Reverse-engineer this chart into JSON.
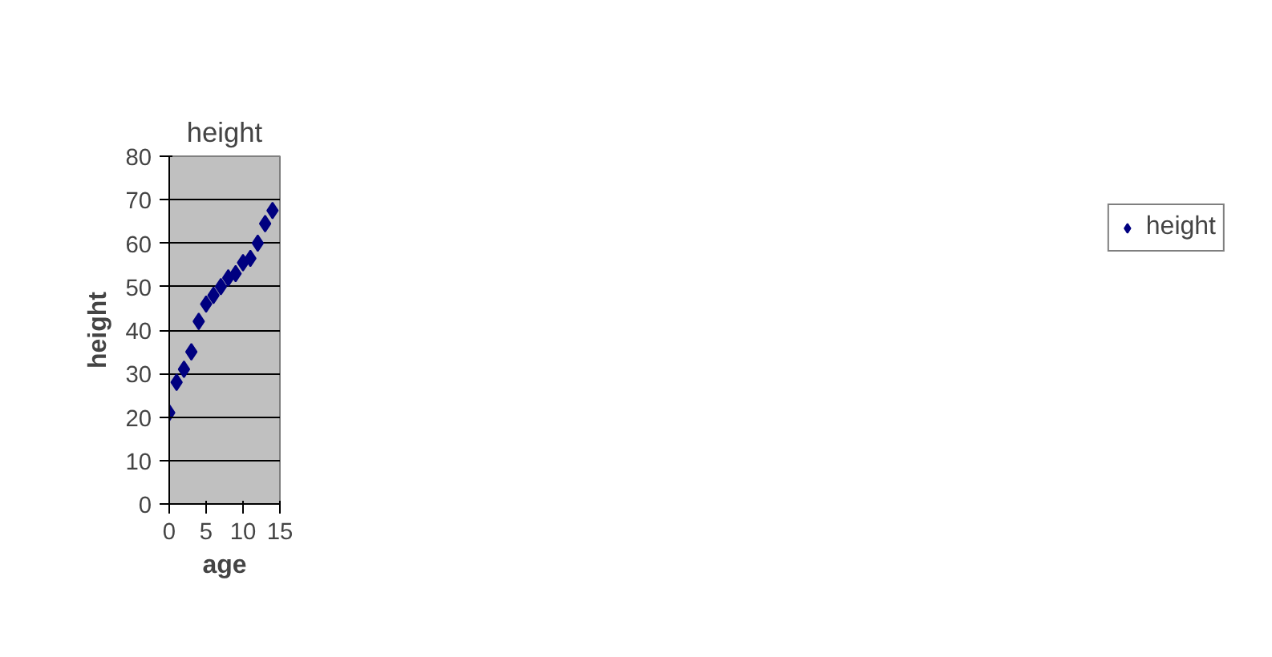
{
  "chart_data": {
    "type": "scatter",
    "title": "height",
    "xlabel": "age",
    "ylabel": "height",
    "x": [
      0,
      1,
      2,
      3,
      4,
      5,
      6,
      7,
      8,
      9,
      10,
      11,
      12,
      13,
      14
    ],
    "series": [
      {
        "name": "height",
        "color": "#000080",
        "values": [
          21,
          28,
          31,
          35,
          42,
          46,
          48,
          50,
          52,
          53,
          55.5,
          56.5,
          60,
          64.5,
          67.5
        ]
      }
    ],
    "xlim": [
      0,
      15
    ],
    "xticks": [
      0,
      5,
      10,
      15
    ],
    "ylim": [
      0,
      80
    ],
    "yticks": [
      0,
      10,
      20,
      30,
      40,
      50,
      60,
      70,
      80
    ],
    "grid": "y",
    "legend": "right",
    "marker": "diamond"
  }
}
